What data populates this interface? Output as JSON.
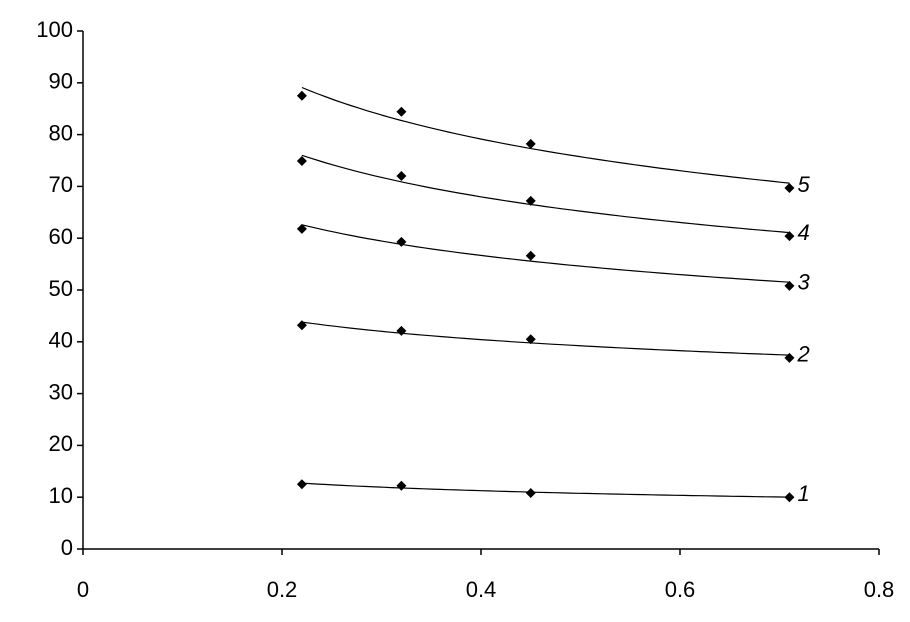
{
  "chart_data": {
    "type": "scatter",
    "trendline": "power",
    "x": [
      0.22,
      0.32,
      0.45,
      0.71
    ],
    "series": [
      {
        "name": "1",
        "color": "#000000",
        "values": [
          12.5,
          12.2,
          10.8,
          10.0
        ]
      },
      {
        "name": "2",
        "color": "#000000",
        "values": [
          43.2,
          42.1,
          40.5,
          36.9
        ]
      },
      {
        "name": "3",
        "color": "#000000",
        "values": [
          61.8,
          59.3,
          56.6,
          50.8
        ]
      },
      {
        "name": "4",
        "color": "#000000",
        "values": [
          74.9,
          72.0,
          67.2,
          60.4
        ]
      },
      {
        "name": "5",
        "color": "#000000",
        "values": [
          87.5,
          84.4,
          78.2,
          69.7
        ]
      }
    ],
    "xlim": [
      0,
      0.8
    ],
    "xticks": [
      0,
      0.2,
      0.4,
      0.6,
      0.8
    ],
    "ylim": [
      0,
      100
    ],
    "yticks": [
      0,
      10,
      20,
      30,
      40,
      50,
      60,
      70,
      80,
      90,
      100
    ]
  }
}
